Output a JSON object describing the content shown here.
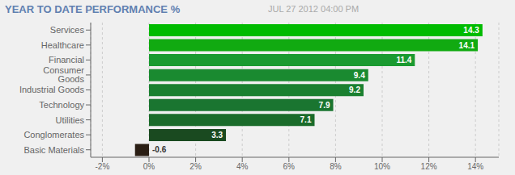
{
  "chart_data": {
    "type": "bar",
    "title": "YEAR TO DATE PERFORMANCE %",
    "subtitle": "JUL 27 2012 04:00 PM",
    "orientation": "horizontal",
    "categories": [
      "Basic Materials",
      "Conglomerates",
      "Utilities",
      "Technology",
      "Industrial Goods",
      "Consumer Goods",
      "Financial",
      "Healthcare",
      "Services"
    ],
    "values": [
      -0.6,
      3.3,
      7.1,
      7.9,
      9.2,
      9.4,
      11.4,
      14.1,
      14.3
    ],
    "colors": [
      "#2a1e14",
      "#1a4a20",
      "#1a6b2a",
      "#1a7530",
      "#1a8030",
      "#1a8a30",
      "#1a9a30",
      "#11aa11",
      "#00bb00"
    ],
    "xlim": [
      -2.5,
      15
    ],
    "xticks": [
      {
        "value": -2,
        "label": "-2%"
      },
      {
        "value": 0,
        "label": "0%"
      },
      {
        "value": 2,
        "label": "2%"
      },
      {
        "value": 4,
        "label": "4%"
      },
      {
        "value": 6,
        "label": "6%"
      },
      {
        "value": 8,
        "label": "8%"
      },
      {
        "value": 10,
        "label": "10%"
      },
      {
        "value": 12,
        "label": "12%"
      },
      {
        "value": 14,
        "label": "14%"
      }
    ],
    "grid": true,
    "data_labels": true
  }
}
